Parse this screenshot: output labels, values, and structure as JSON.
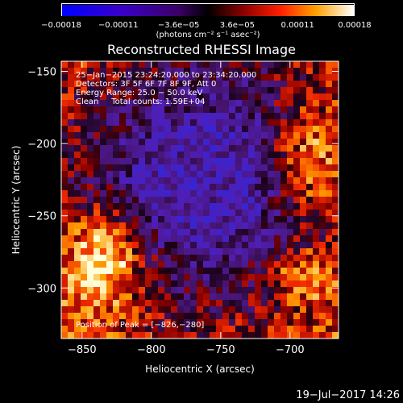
{
  "chart_data": {
    "type": "heatmap",
    "title": "Reconstructed RHESSI Image",
    "xlabel": "Heliocentric X (arcsec)",
    "ylabel": "Heliocentric Y (arcsec)",
    "xlim": [
      -865,
      -665
    ],
    "ylim": [
      -335,
      -143
    ],
    "x_ticks": [
      {
        "value": -850,
        "label": "−850"
      },
      {
        "value": -800,
        "label": "−800"
      },
      {
        "value": -750,
        "label": "−750"
      },
      {
        "value": -700,
        "label": "−700"
      }
    ],
    "y_ticks": [
      {
        "value": -150,
        "label": "−150"
      },
      {
        "value": -200,
        "label": "−200"
      },
      {
        "value": -250,
        "label": "−250"
      },
      {
        "value": -300,
        "label": "−300"
      }
    ],
    "colorbar": {
      "range": [
        -0.00018,
        0.00018
      ],
      "ticks": [
        {
          "value": -0.00018,
          "label": "−0.00018"
        },
        {
          "value": -0.00011,
          "label": "−0.00011"
        },
        {
          "value": -3.6e-05,
          "label": "−3.6e−05"
        },
        {
          "value": 3.6e-05,
          "label": "3.6e−05"
        },
        {
          "value": 0.00011,
          "label": "0.00011"
        },
        {
          "value": 0.00018,
          "label": "0.00018"
        }
      ],
      "unit": "(photons cm⁻² s⁻¹ asec⁻²)"
    },
    "annotations": [
      "25−Jan−2015 23:24:20.000 to 23:34:20.000",
      "Detectors: 3F 5F 6F 7F 8F 9F, Att 0",
      "Energy Range: 25.0 − 50.0 keV",
      "Clean     Total counts: 1.59E+04"
    ],
    "peak_label": "Position of Peak = [−826,−280]",
    "peak": [
      -826,
      -280
    ]
  },
  "footer_timestamp": "19−Jul−2017 14:26"
}
